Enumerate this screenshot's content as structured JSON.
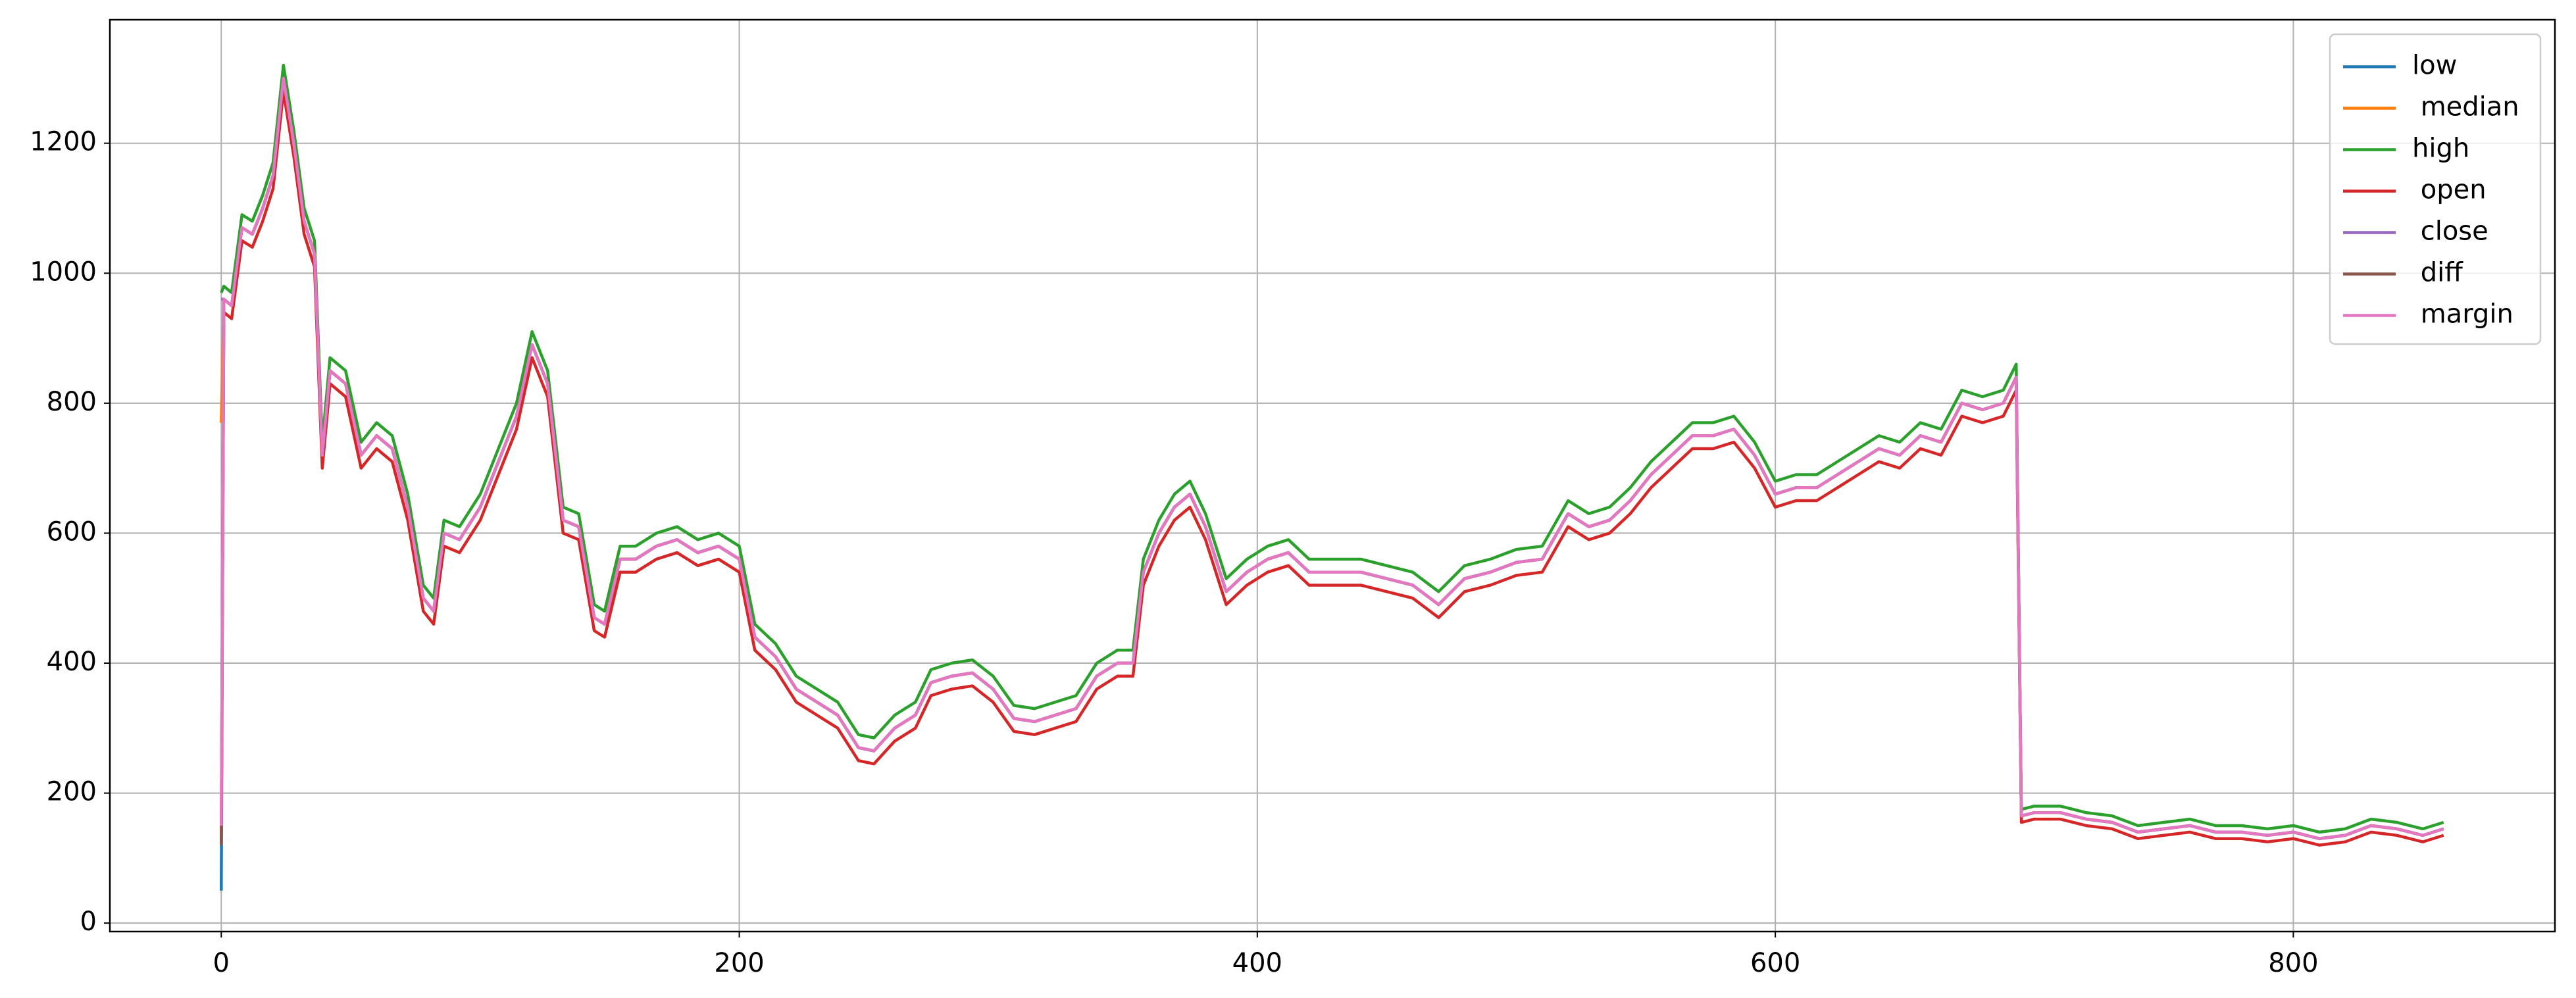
{
  "chart_data": {
    "type": "line",
    "x": [
      0,
      1,
      4,
      8,
      12,
      16,
      20,
      24,
      28,
      32,
      36,
      39,
      42,
      48,
      54,
      60,
      66,
      72,
      78,
      82,
      86,
      92,
      100,
      108,
      114,
      120,
      126,
      132,
      138,
      144,
      148,
      154,
      160,
      168,
      176,
      184,
      192,
      200,
      206,
      214,
      222,
      230,
      238,
      246,
      252,
      260,
      268,
      274,
      282,
      290,
      298,
      306,
      314,
      322,
      330,
      338,
      346,
      352,
      356,
      362,
      368,
      374,
      380,
      388,
      396,
      404,
      412,
      420,
      430,
      440,
      450,
      460,
      470,
      480,
      490,
      500,
      510,
      520,
      528,
      536,
      544,
      552,
      560,
      568,
      576,
      584,
      592,
      600,
      608,
      616,
      624,
      632,
      640,
      648,
      656,
      664,
      672,
      680,
      688,
      693,
      695,
      700,
      710,
      720,
      730,
      740,
      750,
      760,
      770,
      780,
      790,
      800,
      810,
      820,
      830,
      840,
      850,
      858
    ],
    "series": [
      {
        "name": "low",
        "color": "#1f77b4",
        "values": [
          50,
          960,
          950,
          1070,
          1060,
          1100,
          1150,
          1300,
          1200,
          1080,
          1030,
          720,
          850,
          830,
          720,
          750,
          730,
          640,
          500,
          480,
          600,
          590,
          640,
          720,
          780,
          890,
          830,
          620,
          610,
          470,
          460,
          560,
          560,
          580,
          590,
          570,
          580,
          560,
          440,
          410,
          360,
          340,
          320,
          270,
          265,
          300,
          320,
          370,
          380,
          385,
          360,
          315,
          310,
          320,
          330,
          380,
          400,
          400,
          540,
          600,
          640,
          660,
          610,
          510,
          540,
          560,
          570,
          540,
          540,
          540,
          530,
          520,
          490,
          530,
          540,
          555,
          560,
          630,
          610,
          620,
          650,
          690,
          720,
          750,
          750,
          760,
          720,
          660,
          670,
          670,
          690,
          710,
          730,
          720,
          750,
          740,
          800,
          790,
          800,
          840,
          165,
          170,
          170,
          160,
          155,
          140,
          145,
          150,
          140,
          140,
          135,
          140,
          130,
          135,
          150,
          145,
          135,
          145
        ]
      },
      {
        "name": " median",
        "color": "#ff7f0e",
        "values": [
          770,
          960,
          950,
          1070,
          1060,
          1100,
          1150,
          1300,
          1200,
          1080,
          1030,
          720,
          850,
          830,
          720,
          750,
          730,
          640,
          500,
          480,
          600,
          590,
          640,
          720,
          780,
          890,
          830,
          620,
          610,
          470,
          460,
          560,
          560,
          580,
          590,
          570,
          580,
          560,
          440,
          410,
          360,
          340,
          320,
          270,
          265,
          300,
          320,
          370,
          380,
          385,
          360,
          315,
          310,
          320,
          330,
          380,
          400,
          400,
          540,
          600,
          640,
          660,
          610,
          510,
          540,
          560,
          570,
          540,
          540,
          540,
          530,
          520,
          490,
          530,
          540,
          555,
          560,
          630,
          610,
          620,
          650,
          690,
          720,
          750,
          750,
          760,
          720,
          660,
          670,
          670,
          690,
          710,
          730,
          720,
          750,
          740,
          800,
          790,
          800,
          840,
          165,
          170,
          170,
          160,
          155,
          140,
          145,
          150,
          140,
          140,
          135,
          140,
          130,
          135,
          150,
          145,
          135,
          145
        ]
      },
      {
        "name": "high",
        "color": "#2ca02c",
        "values": [
          970,
          980,
          970,
          1090,
          1080,
          1120,
          1170,
          1320,
          1220,
          1100,
          1050,
          740,
          870,
          850,
          740,
          770,
          750,
          660,
          520,
          500,
          620,
          610,
          660,
          740,
          800,
          910,
          850,
          640,
          630,
          490,
          480,
          580,
          580,
          600,
          610,
          590,
          600,
          580,
          460,
          430,
          380,
          360,
          340,
          290,
          285,
          320,
          340,
          390,
          400,
          405,
          380,
          335,
          330,
          340,
          350,
          400,
          420,
          420,
          560,
          620,
          660,
          680,
          630,
          530,
          560,
          580,
          590,
          560,
          560,
          560,
          550,
          540,
          510,
          550,
          560,
          575,
          580,
          650,
          630,
          640,
          670,
          710,
          740,
          770,
          770,
          780,
          740,
          680,
          690,
          690,
          710,
          730,
          750,
          740,
          770,
          760,
          820,
          810,
          820,
          860,
          175,
          180,
          180,
          170,
          165,
          150,
          155,
          160,
          150,
          150,
          145,
          150,
          140,
          145,
          160,
          155,
          145,
          155
        ]
      },
      {
        "name": " open",
        "color": "#d62728",
        "values": [
          130,
          940,
          930,
          1050,
          1040,
          1080,
          1130,
          1280,
          1180,
          1060,
          1010,
          700,
          830,
          810,
          700,
          730,
          710,
          620,
          480,
          460,
          580,
          570,
          620,
          700,
          760,
          870,
          810,
          600,
          590,
          450,
          440,
          540,
          540,
          560,
          570,
          550,
          560,
          540,
          420,
          390,
          340,
          320,
          300,
          250,
          245,
          280,
          300,
          350,
          360,
          365,
          340,
          295,
          290,
          300,
          310,
          360,
          380,
          380,
          520,
          580,
          620,
          640,
          590,
          490,
          520,
          540,
          550,
          520,
          520,
          520,
          510,
          500,
          470,
          510,
          520,
          535,
          540,
          610,
          590,
          600,
          630,
          670,
          700,
          730,
          730,
          740,
          700,
          640,
          650,
          650,
          670,
          690,
          710,
          700,
          730,
          720,
          780,
          770,
          780,
          820,
          155,
          160,
          160,
          150,
          145,
          130,
          135,
          140,
          130,
          130,
          125,
          130,
          120,
          125,
          140,
          135,
          125,
          135
        ]
      },
      {
        "name": " close",
        "color": "#9467bd",
        "values": [
          960,
          960,
          950,
          1070,
          1060,
          1100,
          1150,
          1300,
          1200,
          1080,
          1030,
          720,
          850,
          830,
          720,
          750,
          730,
          640,
          500,
          480,
          600,
          590,
          640,
          720,
          780,
          890,
          830,
          620,
          610,
          470,
          460,
          560,
          560,
          580,
          590,
          570,
          580,
          560,
          440,
          410,
          360,
          340,
          320,
          270,
          265,
          300,
          320,
          370,
          380,
          385,
          360,
          315,
          310,
          320,
          330,
          380,
          400,
          400,
          540,
          600,
          640,
          660,
          610,
          510,
          540,
          560,
          570,
          540,
          540,
          540,
          530,
          520,
          490,
          530,
          540,
          555,
          560,
          630,
          610,
          620,
          650,
          690,
          720,
          750,
          750,
          760,
          720,
          660,
          670,
          670,
          690,
          710,
          730,
          720,
          750,
          740,
          800,
          790,
          800,
          840,
          165,
          170,
          170,
          160,
          155,
          140,
          145,
          150,
          140,
          140,
          135,
          140,
          130,
          135,
          150,
          145,
          135,
          145
        ]
      },
      {
        "name": " diff",
        "color": "#8c564b",
        "values": [
          120,
          960,
          950,
          1070,
          1060,
          1100,
          1150,
          1300,
          1200,
          1080,
          1030,
          720,
          850,
          830,
          720,
          750,
          730,
          640,
          500,
          480,
          600,
          590,
          640,
          720,
          780,
          890,
          830,
          620,
          610,
          470,
          460,
          560,
          560,
          580,
          590,
          570,
          580,
          560,
          440,
          410,
          360,
          340,
          320,
          270,
          265,
          300,
          320,
          370,
          380,
          385,
          360,
          315,
          310,
          320,
          330,
          380,
          400,
          400,
          540,
          600,
          640,
          660,
          610,
          510,
          540,
          560,
          570,
          540,
          540,
          540,
          530,
          520,
          490,
          530,
          540,
          555,
          560,
          630,
          610,
          620,
          650,
          690,
          720,
          750,
          750,
          760,
          720,
          660,
          670,
          670,
          690,
          710,
          730,
          720,
          750,
          740,
          800,
          790,
          800,
          840,
          165,
          170,
          170,
          160,
          155,
          140,
          145,
          150,
          140,
          140,
          135,
          140,
          130,
          135,
          150,
          145,
          135,
          145
        ]
      },
      {
        "name": " margin",
        "color": "#e377c2",
        "values": [
          150,
          960,
          950,
          1070,
          1060,
          1100,
          1150,
          1300,
          1200,
          1080,
          1030,
          720,
          850,
          830,
          720,
          750,
          730,
          640,
          500,
          480,
          600,
          590,
          640,
          720,
          780,
          890,
          830,
          620,
          610,
          470,
          460,
          560,
          560,
          580,
          590,
          570,
          580,
          560,
          440,
          410,
          360,
          340,
          320,
          270,
          265,
          300,
          320,
          370,
          380,
          385,
          360,
          315,
          310,
          320,
          330,
          380,
          400,
          400,
          540,
          600,
          640,
          660,
          610,
          510,
          540,
          560,
          570,
          540,
          540,
          540,
          530,
          520,
          490,
          530,
          540,
          555,
          560,
          630,
          610,
          620,
          650,
          690,
          720,
          750,
          750,
          760,
          720,
          660,
          670,
          670,
          690,
          710,
          730,
          720,
          750,
          740,
          800,
          790,
          800,
          840,
          165,
          170,
          170,
          160,
          155,
          140,
          145,
          150,
          140,
          140,
          135,
          140,
          130,
          135,
          150,
          145,
          135,
          145
        ]
      }
    ],
    "xlim": [
      -43,
      901
    ],
    "ylim": [
      -13,
      1390
    ],
    "xticks": [
      0,
      200,
      400,
      600,
      800
    ],
    "yticks": [
      0,
      200,
      400,
      600,
      800,
      1000,
      1200
    ],
    "grid": true,
    "legend": "upper right"
  }
}
